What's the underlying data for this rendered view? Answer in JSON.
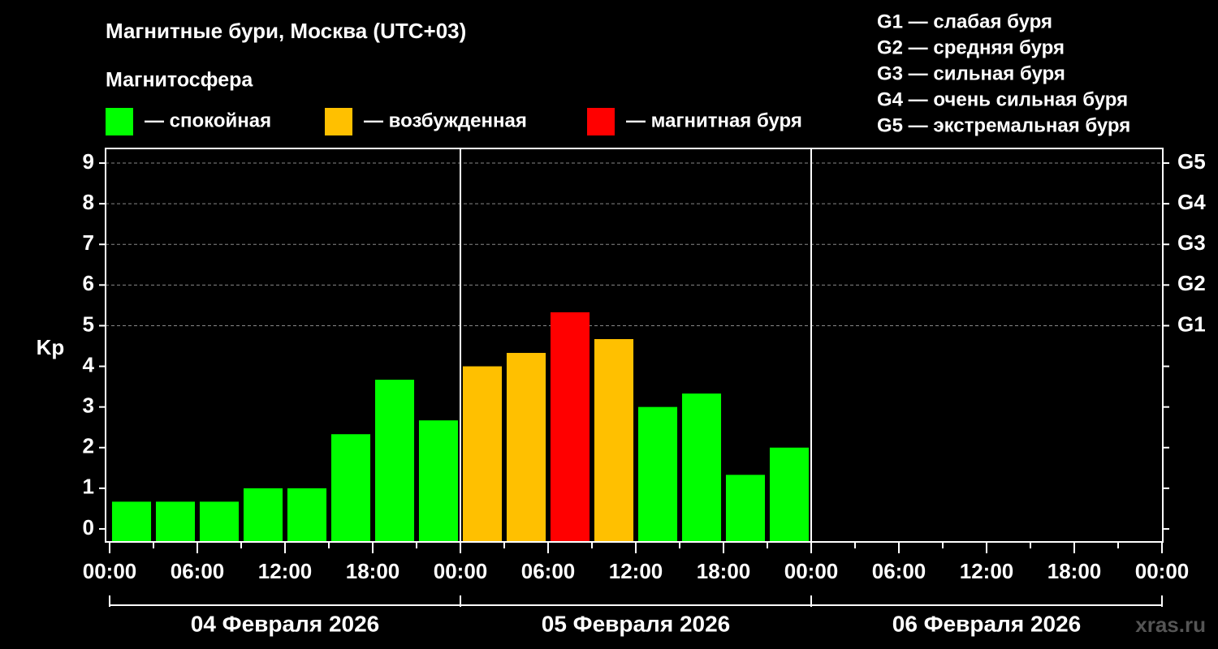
{
  "chart_data": {
    "type": "bar",
    "title": "Магнитные бури, Москва (UTC+03)",
    "legend_title": "Магнитосфера",
    "legend": [
      {
        "name": "— спокойная",
        "color": "#00ff00"
      },
      {
        "name": "— возбужденная",
        "color": "#ffc000"
      },
      {
        "name": "— магнитная буря",
        "color": "#ff0000"
      }
    ],
    "storm_levels": [
      "G1 — слабая буря",
      "G2 — средняя буря",
      "G3 — сильная буря",
      "G4 — очень сильная буря",
      "G5 — экстремальная буря"
    ],
    "y_label": "Kp",
    "x": [
      1.5,
      4.5,
      7.5,
      10.5,
      13.5,
      16.5,
      19.5,
      22.5,
      25.5,
      28.5,
      31.5,
      34.5,
      37.5,
      40.5,
      43.5,
      46.5
    ],
    "values": [
      0.67,
      0.67,
      0.67,
      1.0,
      1.0,
      2.33,
      3.67,
      2.67,
      4.0,
      4.33,
      5.33,
      4.67,
      3.0,
      3.33,
      1.33,
      2.0
    ],
    "colors": [
      "#00ff00",
      "#00ff00",
      "#00ff00",
      "#00ff00",
      "#00ff00",
      "#00ff00",
      "#00ff00",
      "#00ff00",
      "#ffc000",
      "#ffc000",
      "#ff0000",
      "#ffc000",
      "#00ff00",
      "#00ff00",
      "#00ff00",
      "#00ff00"
    ],
    "xlim": [
      0,
      72
    ],
    "xticks": [
      {
        "value": 0,
        "label": "00:00"
      },
      {
        "value": 6,
        "label": "06:00"
      },
      {
        "value": 12,
        "label": "12:00"
      },
      {
        "value": 18,
        "label": "18:00"
      },
      {
        "value": 24,
        "label": "00:00"
      },
      {
        "value": 30,
        "label": "06:00"
      },
      {
        "value": 36,
        "label": "12:00"
      },
      {
        "value": 42,
        "label": "18:00"
      },
      {
        "value": 48,
        "label": "00:00"
      },
      {
        "value": 54,
        "label": "06:00"
      },
      {
        "value": 60,
        "label": "12:00"
      },
      {
        "value": 66,
        "label": "18:00"
      },
      {
        "value": 72,
        "label": "00:00"
      }
    ],
    "xminorticks": [
      3,
      9,
      15,
      21,
      27,
      33,
      39,
      45,
      51,
      57,
      63,
      69
    ],
    "days": [
      {
        "label": "04 Февраля 2026",
        "start": 0,
        "end": 24
      },
      {
        "label": "05 Февраля 2026",
        "start": 24,
        "end": 48
      },
      {
        "label": "06 Февраля 2026",
        "start": 48,
        "end": 72
      }
    ],
    "ylim": [
      -0.32,
      9.36
    ],
    "yticks": [
      0,
      1,
      2,
      3,
      4,
      5,
      6,
      7,
      8,
      9
    ],
    "y2lim": [
      -0.32,
      9.36
    ],
    "y2ticks": [
      {
        "value": 5,
        "label": "G1"
      },
      {
        "value": 6,
        "label": "G2"
      },
      {
        "value": 7,
        "label": "G3"
      },
      {
        "value": 8,
        "label": "G4"
      },
      {
        "value": 9,
        "label": "G5"
      }
    ],
    "grid": true,
    "watermark": "xras.ru"
  }
}
